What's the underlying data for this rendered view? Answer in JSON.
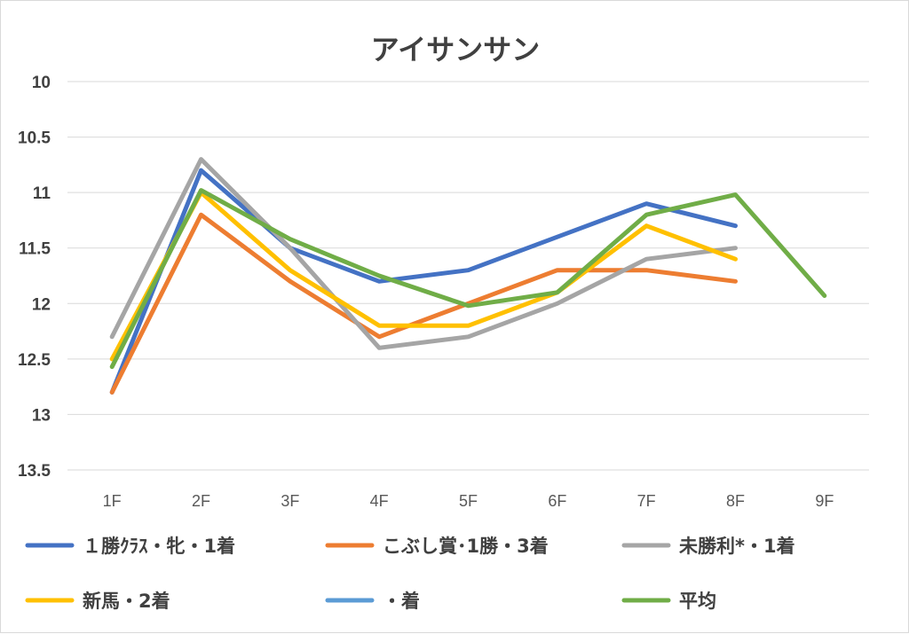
{
  "chart_data": {
    "type": "line",
    "title": "アイサンサン",
    "categories": [
      "1F",
      "2F",
      "3F",
      "4F",
      "5F",
      "6F",
      "7F",
      "8F",
      "9F"
    ],
    "y_tick_labels": [
      "10",
      "10.5",
      "11",
      "11.5",
      "12",
      "12.5",
      "13",
      "13.5"
    ],
    "ylim": [
      10,
      13.5
    ],
    "y_axis_reversed": true,
    "grid": true,
    "legend_position": "bottom",
    "series": [
      {
        "name": "１勝ｸﾗｽ・牝・1着",
        "color": "#4472c4",
        "values": [
          12.8,
          10.8,
          11.5,
          11.8,
          11.7,
          11.4,
          11.1,
          11.3,
          null
        ]
      },
      {
        "name": "こぶし賞･1勝・3着",
        "color": "#ed7d31",
        "values": [
          12.8,
          11.2,
          11.8,
          12.3,
          12.0,
          11.7,
          11.7,
          11.8,
          null
        ]
      },
      {
        "name": "未勝利*・1着",
        "color": "#a5a5a5",
        "values": [
          12.3,
          10.7,
          11.5,
          12.4,
          12.3,
          12.0,
          11.6,
          11.5,
          null
        ]
      },
      {
        "name": "新馬・2着",
        "color": "#ffc000",
        "values": [
          12.5,
          11.0,
          11.7,
          12.2,
          12.2,
          11.9,
          11.3,
          11.6,
          null
        ]
      },
      {
        "name": "・着",
        "color": "#5b9bd5",
        "values": [
          null,
          null,
          null,
          null,
          null,
          null,
          null,
          null,
          null
        ]
      },
      {
        "name": "平均",
        "color": "#70ad47",
        "values": [
          12.57,
          10.98,
          11.42,
          11.75,
          12.02,
          11.9,
          11.2,
          11.02,
          11.93
        ]
      }
    ]
  }
}
